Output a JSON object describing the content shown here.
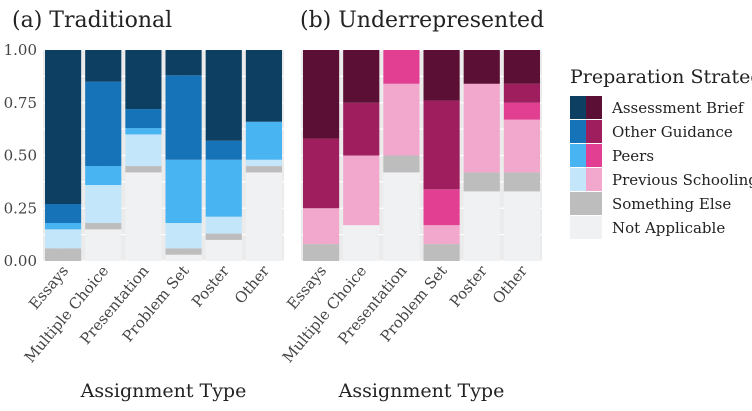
{
  "chart_data": {
    "type": "bar",
    "stacked": true,
    "xlabel": "Assignment Type",
    "ylabel": "",
    "ylim": [
      0,
      1
    ],
    "y_ticks": [
      "0.00",
      "0.25",
      "0.50",
      "0.75",
      "1.00"
    ],
    "categories": [
      "Essays",
      "Multiple Choice",
      "Presentation",
      "Problem Set",
      "Poster",
      "Other"
    ],
    "legend": {
      "title": "Preparation Strategy",
      "position": "right",
      "entries": [
        "Assessment Brief",
        "Other Guidance",
        "Peers",
        "Previous Schooling",
        "Something Else",
        "Not Applicable"
      ]
    },
    "stack_order_bottom_to_top": [
      "Not Applicable",
      "Something Else",
      "Previous Schooling",
      "Peers",
      "Other Guidance",
      "Assessment Brief"
    ],
    "panels": [
      {
        "title": "(a) Traditional",
        "colors": {
          "Assessment Brief": "#0d3f63",
          "Other Guidance": "#1673b8",
          "Peers": "#48b4f2",
          "Previous Schooling": "#c4e6fa",
          "Something Else": "#bdbdbd",
          "Not Applicable": "#eff1f3"
        },
        "series": [
          {
            "name": "Not Applicable",
            "values": [
              0.0,
              0.15,
              0.42,
              0.03,
              0.1,
              0.42
            ]
          },
          {
            "name": "Something Else",
            "values": [
              0.06,
              0.03,
              0.03,
              0.03,
              0.03,
              0.03
            ]
          },
          {
            "name": "Previous Schooling",
            "values": [
              0.09,
              0.18,
              0.15,
              0.12,
              0.08,
              0.03
            ]
          },
          {
            "name": "Peers",
            "values": [
              0.03,
              0.09,
              0.03,
              0.3,
              0.27,
              0.18
            ]
          },
          {
            "name": "Other Guidance",
            "values": [
              0.09,
              0.4,
              0.09,
              0.4,
              0.09,
              0.0
            ]
          },
          {
            "name": "Assessment Brief",
            "values": [
              0.73,
              0.15,
              0.28,
              0.12,
              0.43,
              0.34
            ]
          }
        ]
      },
      {
        "title": "(b) Underrepresented",
        "colors": {
          "Assessment Brief": "#5c0f35",
          "Other Guidance": "#9e1e5e",
          "Peers": "#e23f92",
          "Previous Schooling": "#f2a8cc",
          "Something Else": "#bdbdbd",
          "Not Applicable": "#eff1f3"
        },
        "series": [
          {
            "name": "Not Applicable",
            "values": [
              0.0,
              0.17,
              0.42,
              0.0,
              0.33,
              0.33
            ]
          },
          {
            "name": "Something Else",
            "values": [
              0.08,
              0.0,
              0.08,
              0.08,
              0.09,
              0.09
            ]
          },
          {
            "name": "Previous Schooling",
            "values": [
              0.17,
              0.33,
              0.34,
              0.09,
              0.42,
              0.25
            ]
          },
          {
            "name": "Peers",
            "values": [
              0.0,
              0.0,
              0.16,
              0.17,
              0.0,
              0.08
            ]
          },
          {
            "name": "Other Guidance",
            "values": [
              0.33,
              0.25,
              0.0,
              0.42,
              0.0,
              0.09
            ]
          },
          {
            "name": "Assessment Brief",
            "values": [
              0.42,
              0.25,
              0.0,
              0.24,
              0.16,
              0.16
            ]
          }
        ]
      }
    ]
  }
}
